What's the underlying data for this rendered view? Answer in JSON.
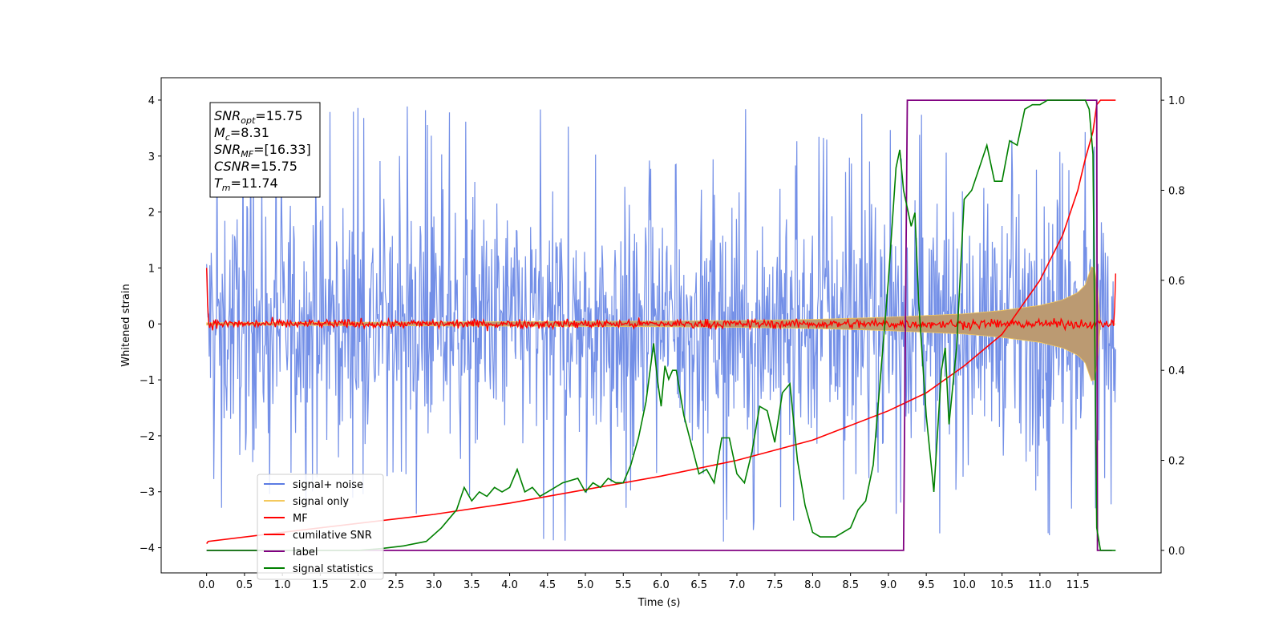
{
  "chart_data": {
    "type": "line",
    "xlabel": "Time (s)",
    "ylabel": "Whitened strain",
    "xlim": [
      -0.6,
      12.6
    ],
    "ylim": [
      -4.45,
      4.4
    ],
    "y2lim": [
      -0.05,
      1.05
    ],
    "x_ticks": [
      0.0,
      0.5,
      1.0,
      1.5,
      2.0,
      2.5,
      3.0,
      3.5,
      4.0,
      4.5,
      5.0,
      5.5,
      6.0,
      6.5,
      7.0,
      7.5,
      8.0,
      8.5,
      9.0,
      9.5,
      10.0,
      10.5,
      11.0,
      11.5
    ],
    "x_tick_labels": [
      "0.0",
      "0.5",
      "1.0",
      "1.5",
      "2.0",
      "2.5",
      "3.0",
      "3.5",
      "4.0",
      "4.5",
      "5.0",
      "5.5",
      "6.0",
      "6.5",
      "7.0",
      "7.5",
      "8.0",
      "8.5",
      "9.0",
      "9.5",
      "10.0",
      "10.5",
      "11.0",
      "11.5"
    ],
    "y_ticks": [
      4,
      3,
      2,
      1,
      0,
      -1,
      -2,
      -3,
      -4
    ],
    "y_tick_labels": [
      "4",
      "3",
      "2",
      "1",
      "0",
      "−1",
      "−2",
      "−3",
      "−4"
    ],
    "y2_ticks": [
      1.0,
      0.8,
      0.6,
      0.4,
      0.2,
      0.0
    ],
    "y2_tick_labels": [
      "1.0",
      "0.8",
      "0.6",
      "0.4",
      "0.2",
      "0.0"
    ],
    "grid": false,
    "legend_position": "lower-left",
    "colors": {
      "signal_noise": "#5b7be3",
      "signal_only": "#f4c95d",
      "mf": "#ff0000",
      "cumulative_snr": "#ff0000",
      "label": "#800080",
      "signal_statistics": "#008000",
      "envelope_overlap": "#bb9a72"
    },
    "series": [
      {
        "name": "signal+ noise",
        "axis": "left",
        "kind": "noise_band",
        "x_range": [
          0.0,
          12.0
        ],
        "typical_band": [
          -2.0,
          2.0
        ],
        "peak_range": [
          -4.1,
          3.95
        ]
      },
      {
        "name": "signal only",
        "axis": "left",
        "kind": "chirp_envelope",
        "x": [
          0.0,
          2.0,
          4.0,
          6.0,
          7.0,
          8.0,
          9.0,
          10.0,
          10.5,
          11.0,
          11.3,
          11.5,
          11.6,
          11.7,
          11.75,
          11.8,
          12.0
        ],
        "amplitude": [
          0.02,
          0.03,
          0.04,
          0.05,
          0.06,
          0.08,
          0.12,
          0.18,
          0.24,
          0.33,
          0.43,
          0.56,
          0.7,
          1.1,
          0.85,
          0.0,
          0.0
        ]
      },
      {
        "name": "MF",
        "axis": "left",
        "kind": "noisy_flat",
        "x": [
          0.0,
          0.02,
          11.98,
          12.0
        ],
        "y": [
          1.0,
          0.0,
          0.0,
          0.9
        ],
        "jitter": 0.08
      },
      {
        "name": "cumilative SNR",
        "axis": "right",
        "x": [
          0.0,
          0.02,
          1.0,
          2.0,
          3.0,
          4.0,
          5.0,
          6.0,
          7.0,
          8.0,
          9.0,
          9.5,
          10.0,
          10.5,
          11.0,
          11.3,
          11.5,
          11.6,
          11.7,
          11.75,
          11.8,
          12.0
        ],
        "y": [
          0.015,
          0.02,
          0.04,
          0.06,
          0.08,
          0.105,
          0.135,
          0.165,
          0.2,
          0.245,
          0.31,
          0.35,
          0.41,
          0.48,
          0.6,
          0.7,
          0.8,
          0.87,
          0.93,
          0.99,
          1.0,
          1.0
        ]
      },
      {
        "name": "label",
        "axis": "right",
        "x": [
          0.0,
          9.2,
          9.25,
          11.75,
          11.76,
          11.95
        ],
        "y": [
          0.0,
          0.0,
          1.0,
          1.0,
          0.0,
          0.0
        ]
      },
      {
        "name": "signal statistics",
        "axis": "right",
        "x": [
          0.0,
          2.0,
          2.3,
          2.6,
          2.9,
          3.1,
          3.3,
          3.4,
          3.5,
          3.6,
          3.7,
          3.8,
          3.9,
          4.0,
          4.1,
          4.2,
          4.3,
          4.4,
          4.5,
          4.7,
          4.9,
          5.0,
          5.1,
          5.2,
          5.3,
          5.4,
          5.5,
          5.6,
          5.7,
          5.8,
          5.9,
          5.95,
          6.0,
          6.05,
          6.1,
          6.15,
          6.2,
          6.3,
          6.5,
          6.6,
          6.7,
          6.8,
          6.9,
          7.0,
          7.1,
          7.2,
          7.3,
          7.4,
          7.5,
          7.6,
          7.7,
          7.8,
          7.9,
          8.0,
          8.1,
          8.3,
          8.5,
          8.6,
          8.7,
          8.8,
          9.0,
          9.1,
          9.15,
          9.2,
          9.3,
          9.35,
          9.4,
          9.5,
          9.6,
          9.7,
          9.75,
          9.8,
          9.9,
          10.0,
          10.1,
          10.2,
          10.3,
          10.4,
          10.5,
          10.6,
          10.7,
          10.8,
          10.9,
          11.0,
          11.1,
          11.2,
          11.3,
          11.5,
          11.6,
          11.65,
          11.7,
          11.75,
          11.8,
          11.9,
          12.0
        ],
        "y": [
          0.0,
          0.0,
          0.004,
          0.01,
          0.02,
          0.05,
          0.09,
          0.14,
          0.11,
          0.13,
          0.12,
          0.14,
          0.13,
          0.14,
          0.18,
          0.13,
          0.14,
          0.12,
          0.13,
          0.15,
          0.16,
          0.13,
          0.15,
          0.14,
          0.16,
          0.15,
          0.15,
          0.19,
          0.25,
          0.33,
          0.46,
          0.38,
          0.32,
          0.41,
          0.38,
          0.4,
          0.4,
          0.3,
          0.17,
          0.18,
          0.15,
          0.25,
          0.25,
          0.17,
          0.15,
          0.22,
          0.32,
          0.31,
          0.24,
          0.35,
          0.37,
          0.2,
          0.1,
          0.04,
          0.03,
          0.03,
          0.05,
          0.09,
          0.11,
          0.19,
          0.6,
          0.85,
          0.89,
          0.8,
          0.72,
          0.75,
          0.55,
          0.3,
          0.13,
          0.4,
          0.45,
          0.28,
          0.45,
          0.78,
          0.8,
          0.85,
          0.9,
          0.82,
          0.82,
          0.91,
          0.9,
          0.98,
          0.99,
          0.99,
          1.0,
          1.0,
          1.0,
          1.0,
          1.0,
          0.98,
          0.88,
          0.05,
          0.0,
          0.0,
          0.0
        ]
      }
    ]
  },
  "info_box": {
    "lines": [
      {
        "main": "SNR",
        "sub": "opt",
        "rest": "=15.75"
      },
      {
        "main": "M",
        "sub": "c",
        "rest": "=8.31"
      },
      {
        "main": "SNR",
        "sub": "MF",
        "rest": "=[16.33]"
      },
      {
        "main": "CSNR",
        "sub": "",
        "rest": "=15.75"
      },
      {
        "main": "T",
        "sub": "m",
        "rest": "=11.74"
      }
    ]
  }
}
